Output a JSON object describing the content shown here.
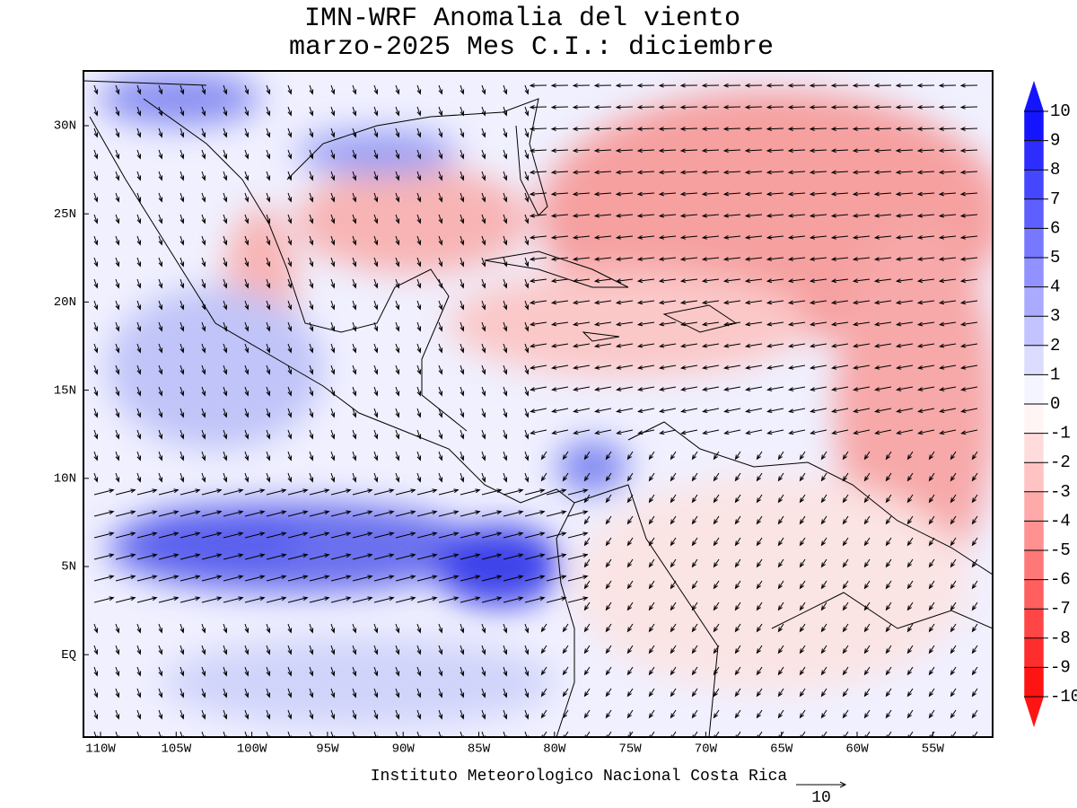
{
  "title": {
    "line1": "IMN-WRF Anomalia del viento",
    "line2": "marzo-2025 Mes C.I.: diciembre"
  },
  "map": {
    "lon_labels": [
      "110W",
      "105W",
      "100W",
      "95W",
      "90W",
      "85W",
      "80W",
      "75W",
      "70W",
      "65W",
      "60W",
      "55W"
    ],
    "lat_labels": [
      "30N",
      "25N",
      "20N",
      "15N",
      "10N",
      "5N",
      "EQ"
    ]
  },
  "colorbar": {
    "labels": [
      10,
      9,
      8,
      7,
      6,
      5,
      4,
      3,
      2,
      1,
      0,
      -1,
      -2,
      -3,
      -4,
      -5,
      -6,
      -7,
      -8,
      -9,
      -10
    ]
  },
  "footer": "Instituto Meteorologico Nacional Costa Rica",
  "reference_vector": {
    "label": "10"
  }
}
